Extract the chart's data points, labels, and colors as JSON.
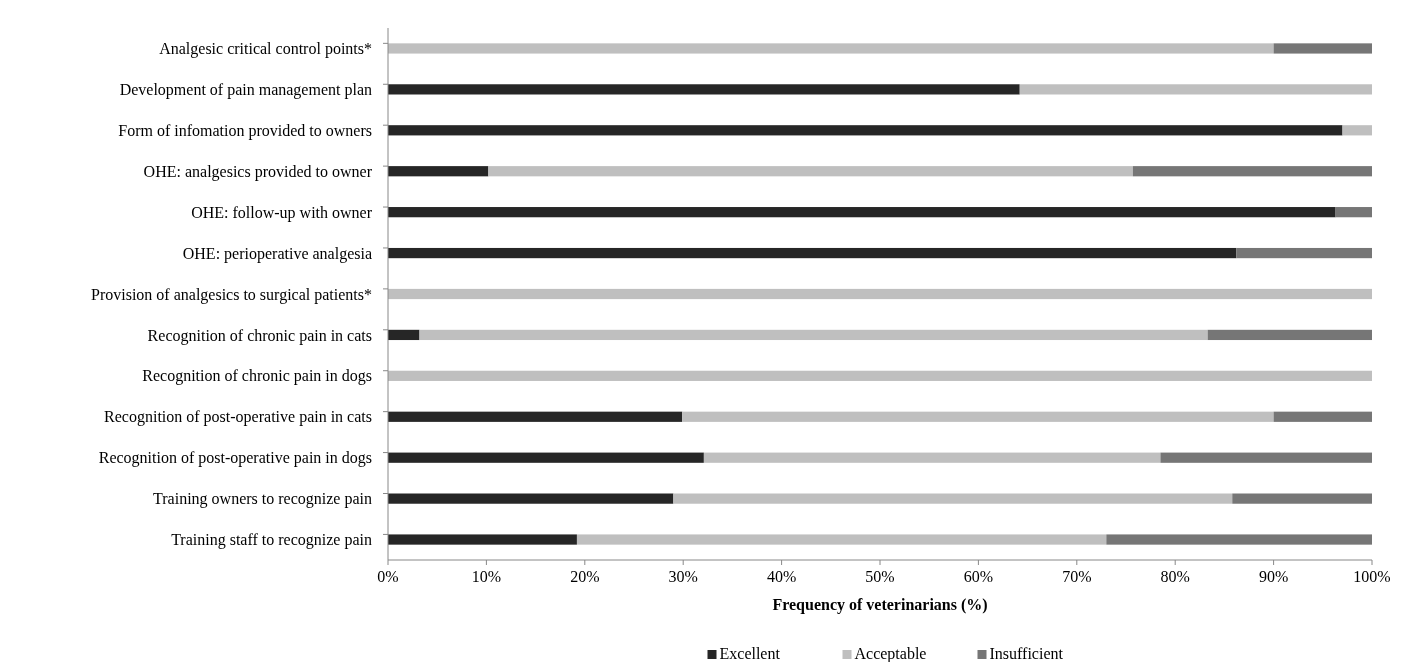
{
  "chart_data": {
    "type": "bar",
    "orientation": "horizontal",
    "stacked": true,
    "xlabel": "Frequency of veterinarians (%)",
    "categories": [
      "Analgesic critical control points*",
      "Development of pain management plan",
      "Form of infomation provided to owners",
      "OHE: analgesics provided to owner",
      "OHE: follow-up with owner",
      "OHE: perioperative analgesia",
      "Provision of analgesics to surgical patients*",
      "Recognition of chronic pain in cats",
      "Recognition of chronic pain in dogs",
      "Recognition of post-operative pain in cats",
      "Recognition of post-operative pain in dogs",
      "Training owners to recognize pain",
      "Training staff to recognize pain"
    ],
    "series": [
      {
        "name": "Excellent",
        "color": "#262626",
        "values": [
          0,
          64.2,
          97.0,
          10.2,
          96.3,
          86.2,
          0,
          3.2,
          0,
          29.9,
          32.1,
          29.0,
          19.2
        ]
      },
      {
        "name": "Acceptable",
        "color": "#bfbfbf",
        "values": [
          90.0,
          35.8,
          3.0,
          65.5,
          0,
          0,
          100,
          80.1,
          100,
          60.1,
          46.4,
          56.8,
          53.8
        ]
      },
      {
        "name": "Insufficient",
        "color": "#767676",
        "values": [
          10.0,
          0,
          0,
          24.3,
          3.7,
          13.8,
          0,
          16.7,
          0,
          10.0,
          21.5,
          14.2,
          27.0
        ]
      }
    ],
    "xlim": [
      0,
      100
    ],
    "xticks": [
      {
        "value": 0,
        "label": "0%"
      },
      {
        "value": 10,
        "label": "10%"
      },
      {
        "value": 20,
        "label": "20%"
      },
      {
        "value": 30,
        "label": "30%"
      },
      {
        "value": 40,
        "label": "40%"
      },
      {
        "value": 50,
        "label": "50%"
      },
      {
        "value": 60,
        "label": "60%"
      },
      {
        "value": 70,
        "label": "70%"
      },
      {
        "value": 80,
        "label": "80%"
      },
      {
        "value": 90,
        "label": "90%"
      },
      {
        "value": 100,
        "label": "100%"
      }
    ],
    "grid": false,
    "legend": "bottom"
  }
}
